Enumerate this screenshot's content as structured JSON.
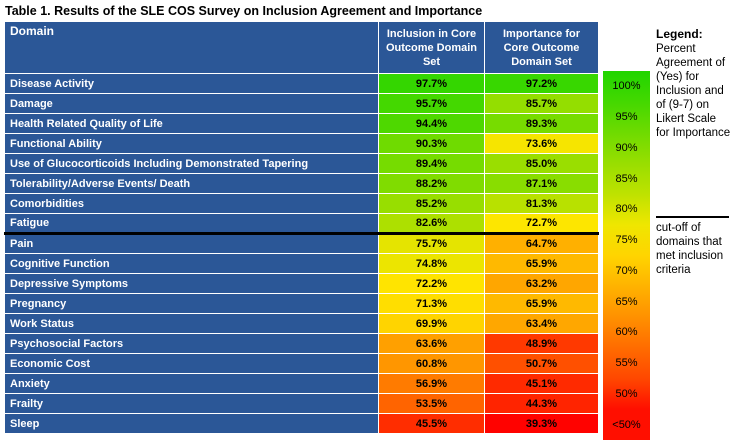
{
  "title": "Table 1. Results of the SLE COS Survey on Inclusion Agreement and Importance",
  "colors": {
    "table_blue": "#2B5797",
    "gridline": "#FFFFFF",
    "cutoff_line": "#000000"
  },
  "table": {
    "headers": [
      "Domain",
      "Inclusion in Core Outcome Domain Set",
      "Importance for Core Outcome Domain Set"
    ],
    "cutoff_before_row_index": 8,
    "rows": [
      {
        "domain": "Disease Activity",
        "inclusion": "97.7%",
        "inclusion_color": "#34D600",
        "importance": "97.2%",
        "importance_color": "#38D700"
      },
      {
        "domain": "Damage",
        "inclusion": "95.7%",
        "inclusion_color": "#44D800",
        "importance": "85.7%",
        "importance_color": "#94DE00"
      },
      {
        "domain": "Health Related Quality of Life",
        "inclusion": "94.4%",
        "inclusion_color": "#4ED800",
        "importance": "89.3%",
        "importance_color": "#77DC00"
      },
      {
        "domain": "Functional Ability",
        "inclusion": "90.3%",
        "inclusion_color": "#6FDB00",
        "importance": "73.6%",
        "importance_color": "#F6E500"
      },
      {
        "domain": "Use of Glucocorticoids Including Demonstrated Tapering",
        "inclusion": "89.4%",
        "inclusion_color": "#76DC00",
        "importance": "85.0%",
        "importance_color": "#9ADE00"
      },
      {
        "domain": "Tolerability/Adverse Events/ Death",
        "inclusion": "88.2%",
        "inclusion_color": "#80DC00",
        "importance": "87.1%",
        "importance_color": "#89DD00"
      },
      {
        "domain": "Comorbidities",
        "inclusion": "85.2%",
        "inclusion_color": "#98DE00",
        "importance": "81.3%",
        "importance_color": "#B8E100"
      },
      {
        "domain": "Fatigue",
        "inclusion": "82.6%",
        "inclusion_color": "#ADE000",
        "importance": "72.7%",
        "importance_color": "#FDE600"
      },
      {
        "domain": "Pain",
        "inclusion": "75.7%",
        "inclusion_color": "#E5E400",
        "importance": "64.7%",
        "importance_color": "#FFB000"
      },
      {
        "domain": "Cognitive Function",
        "inclusion": "74.8%",
        "inclusion_color": "#ECE500",
        "importance": "65.9%",
        "importance_color": "#FFB900"
      },
      {
        "domain": "Depressive Symptoms",
        "inclusion": "72.2%",
        "inclusion_color": "#FFE400",
        "importance": "63.2%",
        "importance_color": "#FFA600"
      },
      {
        "domain": "Pregnancy",
        "inclusion": "71.3%",
        "inclusion_color": "#FFDE00",
        "importance": "65.9%",
        "importance_color": "#FFB900"
      },
      {
        "domain": "Work Status",
        "inclusion": "69.9%",
        "inclusion_color": "#FFD400",
        "importance": "63.4%",
        "importance_color": "#FFA700"
      },
      {
        "domain": "Psychosocial Factors",
        "inclusion": "63.6%",
        "inclusion_color": "#FFA000",
        "importance": "48.9%",
        "importance_color": "#FF3900"
      },
      {
        "domain": "Economic Cost",
        "inclusion": "60.8%",
        "inclusion_color": "#FF9600",
        "importance": "50.7%",
        "importance_color": "#FF5000"
      },
      {
        "domain": "Anxiety",
        "inclusion": "56.9%",
        "inclusion_color": "#FF7B00",
        "importance": "45.1%",
        "importance_color": "#FF2A00"
      },
      {
        "domain": "Frailty",
        "inclusion": "53.5%",
        "inclusion_color": "#FF6400",
        "importance": "44.3%",
        "importance_color": "#FF2400"
      },
      {
        "domain": "Sleep",
        "inclusion": "45.5%",
        "inclusion_color": "#FF2D00",
        "importance": "39.3%",
        "importance_color": "#FF0200"
      }
    ]
  },
  "legend": {
    "title": "Legend:",
    "description": "Percent Agreement of (Yes) for Inclusion and of (9-7) on Likert Scale for Importance",
    "cutoff_note": "cut-off of domains that met inclusion criteria",
    "scale": [
      {
        "label": "100%",
        "color": "#21D500"
      },
      {
        "label": "95%",
        "color": "#44D800"
      },
      {
        "label": "90%",
        "color": "#6FDB00"
      },
      {
        "label": "85%",
        "color": "#98DE00"
      },
      {
        "label": "80%",
        "color": "#BEE200"
      },
      {
        "label": "75%",
        "color": "#EFE600"
      },
      {
        "label": "70%",
        "color": "#FFD400"
      },
      {
        "label": "65%",
        "color": "#FFB300"
      },
      {
        "label": "60%",
        "color": "#FF9100"
      },
      {
        "label": "55%",
        "color": "#FF6C00"
      },
      {
        "label": "50%",
        "color": "#FF4700"
      },
      {
        "label": "<50%",
        "color": "#FF0F00"
      }
    ]
  },
  "chart_data": {
    "type": "table",
    "title": "Table 1. Results of the SLE COS Survey on Inclusion Agreement and Importance",
    "columns": [
      "Domain",
      "Inclusion in Core Outcome Domain Set",
      "Importance for Core Outcome Domain Set"
    ],
    "categories": [
      "Disease Activity",
      "Damage",
      "Health Related Quality of Life",
      "Functional Ability",
      "Use of Glucocorticoids Including Demonstrated Tapering",
      "Tolerability/Adverse Events/ Death",
      "Comorbidities",
      "Fatigue",
      "Pain",
      "Cognitive Function",
      "Depressive Symptoms",
      "Pregnancy",
      "Work Status",
      "Psychosocial Factors",
      "Economic Cost",
      "Anxiety",
      "Frailty",
      "Sleep"
    ],
    "series": [
      {
        "name": "Inclusion in Core Outcome Domain Set",
        "values": [
          97.7,
          95.7,
          94.4,
          90.3,
          89.4,
          88.2,
          85.2,
          82.6,
          75.7,
          74.8,
          72.2,
          71.3,
          69.9,
          63.6,
          60.8,
          56.9,
          53.5,
          45.5
        ]
      },
      {
        "name": "Importance for Core Outcome Domain Set",
        "values": [
          97.2,
          85.7,
          89.3,
          73.6,
          85.0,
          87.1,
          81.3,
          72.7,
          64.7,
          65.9,
          63.2,
          65.9,
          63.4,
          48.9,
          50.7,
          45.1,
          44.3,
          39.3
        ]
      }
    ],
    "color_scale": {
      "high": "#21D500",
      "mid": "#FFE600",
      "low": "#FF0000",
      "high_label": "100%",
      "low_label": "<50%"
    },
    "cutoff_after_category": "Fatigue",
    "legend_position": "right",
    "units": "percent"
  }
}
